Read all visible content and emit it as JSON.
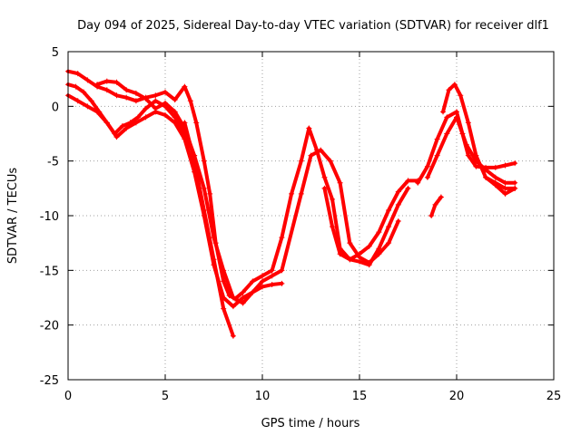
{
  "chart_data": {
    "type": "scatter",
    "title": "Day 094 of 2025, Sidereal Day-to-day VTEC variation (SDTVAR) for receiver dlf1",
    "xlabel": "GPS time / hours",
    "ylabel": "SDTVAR / TECUs",
    "xlim": [
      0,
      25
    ],
    "ylim": [
      -25,
      5
    ],
    "xticks": [
      0,
      5,
      10,
      15,
      20,
      25
    ],
    "yticks": [
      5,
      0,
      -5,
      -10,
      -15,
      -20,
      -25
    ],
    "grid": true,
    "marker": "+",
    "color": "#ff0000",
    "series": [
      {
        "name": "trace-1",
        "x": [
          0,
          0.5,
          1.0,
          1.5,
          2.0,
          2.5,
          3.0,
          3.5,
          4.0,
          4.5,
          5.0,
          5.5,
          6.0,
          6.3,
          6.6,
          7.0,
          7.3,
          7.6,
          8.0,
          8.3,
          8.6,
          9.0,
          9.5,
          10.0,
          10.5,
          11.0,
          11.5,
          12.0,
          12.4,
          12.8,
          13.2,
          13.6,
          14.0,
          14.5,
          15.0,
          15.5,
          16.0,
          16.5,
          17.0,
          17.5,
          18.0
        ],
        "y": [
          3.2,
          3.0,
          2.4,
          1.8,
          1.5,
          1.0,
          0.8,
          0.5,
          0.8,
          1.0,
          1.3,
          0.6,
          1.8,
          0.5,
          -1.5,
          -5.0,
          -8.0,
          -12.5,
          -16.0,
          -17.3,
          -17.6,
          -17.0,
          -16.0,
          -15.5,
          -15.0,
          -12.0,
          -8.0,
          -5.0,
          -2.0,
          -4.0,
          -6.5,
          -8.5,
          -13.0,
          -14.0,
          -13.5,
          -12.8,
          -11.5,
          -9.5,
          -7.8,
          -6.8,
          -6.8
        ]
      },
      {
        "name": "trace-2",
        "x": [
          0,
          0.4,
          0.8,
          1.2,
          1.6,
          2.0,
          2.4,
          2.8,
          3.2,
          3.6,
          4.0,
          4.5,
          5.0,
          5.5,
          6.0,
          6.5,
          7.0,
          7.5,
          8.0,
          8.5,
          9.0,
          9.5,
          10.0,
          10.5,
          11.0,
          12.0,
          12.5,
          13.0,
          13.5,
          14.0,
          14.5,
          15.0,
          15.5,
          16.0,
          16.5,
          17.0
        ],
        "y": [
          2.0,
          1.8,
          1.3,
          0.5,
          -0.5,
          -1.5,
          -2.5,
          -1.8,
          -1.5,
          -1.0,
          -0.2,
          0.5,
          0.0,
          -1.0,
          -2.5,
          -4.5,
          -7.5,
          -12.0,
          -15.0,
          -17.5,
          -18.0,
          -17.0,
          -16.0,
          -15.5,
          -15.0,
          -8.0,
          -4.5,
          -4.0,
          -5.0,
          -7.0,
          -12.5,
          -13.8,
          -14.3,
          -13.5,
          -12.5,
          -10.5
        ]
      },
      {
        "name": "trace-3",
        "x": [
          0,
          0.5,
          1.0,
          1.5,
          2.0,
          2.5,
          3.0,
          3.5,
          4.0,
          4.5,
          5.0,
          5.5,
          6.0,
          6.5,
          7.0,
          7.5,
          8.0,
          8.5,
          9.0,
          9.5,
          10.0,
          10.5,
          11.0
        ],
        "y": [
          1.0,
          0.5,
          0.0,
          -0.5,
          -1.5,
          -2.8,
          -2.0,
          -1.5,
          -1.0,
          -0.5,
          -0.8,
          -1.5,
          -3.0,
          -6.0,
          -10.0,
          -14.5,
          -17.5,
          -18.3,
          -17.5,
          -17.0,
          -16.5,
          -16.3,
          -16.2
        ]
      },
      {
        "name": "trace-4",
        "x": [
          6.0,
          6.5,
          7.0,
          7.5,
          8.0,
          8.5
        ],
        "y": [
          -1.5,
          -5.0,
          -9.5,
          -14.0,
          -18.5,
          -21.0
        ]
      },
      {
        "name": "trace-5",
        "x": [
          1.5,
          2.0,
          2.5,
          3.0,
          3.5,
          4.0,
          4.5,
          5.0,
          5.5,
          6.0,
          6.5
        ],
        "y": [
          2.0,
          2.3,
          2.2,
          1.5,
          1.2,
          0.7,
          -0.2,
          0.3,
          -0.5,
          -2.0,
          -4.5
        ]
      },
      {
        "name": "trace-6",
        "x": [
          13.2,
          13.6,
          14.0,
          14.5,
          15.0,
          15.5,
          16.0,
          16.5,
          17.0,
          17.5
        ],
        "y": [
          -7.5,
          -11.0,
          -13.5,
          -14.0,
          -14.2,
          -14.5,
          -13.0,
          -11.0,
          -9.0,
          -7.5
        ]
      },
      {
        "name": "trace-7",
        "x": [
          18.0,
          18.5,
          19.0,
          19.5,
          20.0,
          20.3,
          20.6,
          21.0,
          21.5,
          22.0,
          22.5,
          23.0
        ],
        "y": [
          -7.0,
          -5.5,
          -3.0,
          -1.0,
          -0.5,
          -2.5,
          -4.5,
          -5.5,
          -5.6,
          -5.6,
          -5.4,
          -5.2
        ]
      },
      {
        "name": "trace-8",
        "x": [
          18.5,
          19.0,
          19.5,
          20.0,
          20.5,
          21.0,
          21.5,
          22.0,
          22.5,
          23.0
        ],
        "y": [
          -6.5,
          -4.5,
          -2.5,
          -1.0,
          -3.5,
          -5.0,
          -5.8,
          -6.5,
          -7.0,
          -7.0
        ]
      },
      {
        "name": "trace-9",
        "x": [
          19.3,
          19.6,
          19.9,
          20.2,
          20.6,
          21.0,
          21.5,
          22.0,
          22.5,
          23.0
        ],
        "y": [
          -0.5,
          1.5,
          2.0,
          1.0,
          -1.5,
          -4.5,
          -6.5,
          -7.0,
          -7.5,
          -7.5
        ]
      },
      {
        "name": "trace-10",
        "x": [
          18.7,
          18.9,
          19.2
        ],
        "y": [
          -10.0,
          -9.0,
          -8.3
        ]
      },
      {
        "name": "trace-11",
        "x": [
          21.5,
          22.0,
          22.5,
          23.0
        ],
        "y": [
          -6.5,
          -7.2,
          -8.0,
          -7.5
        ]
      }
    ]
  }
}
